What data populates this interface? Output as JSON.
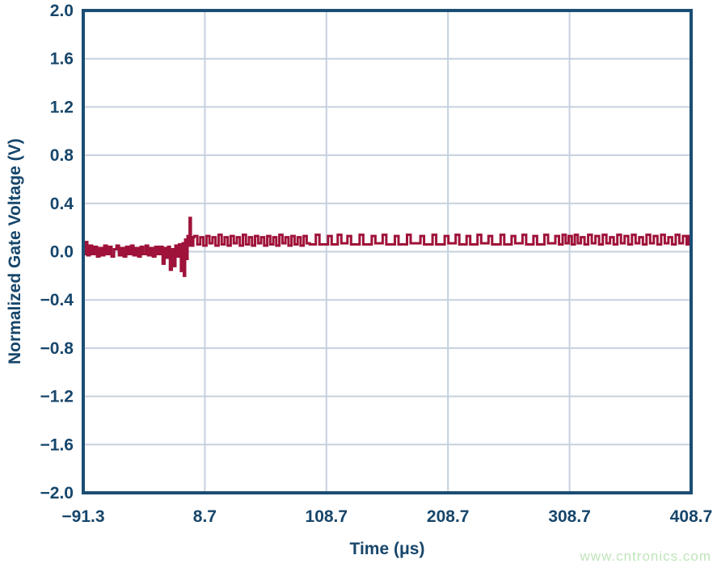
{
  "watermark": {
    "text": "www.cntronics.com",
    "color": "#bfe5ba"
  },
  "chart_data": {
    "type": "line",
    "title": "",
    "xlabel": "Time (μs)",
    "ylabel": "Normalized Gate Voltage (V)",
    "xlim": [
      -91.3,
      408.7
    ],
    "ylim": [
      -2.0,
      2.0
    ],
    "x_ticks": [
      -91.3,
      8.7,
      108.7,
      208.7,
      308.7,
      408.7
    ],
    "x_tick_labels": [
      "−91.3",
      "8.7",
      "108.7",
      "208.7",
      "308.7",
      "408.7"
    ],
    "y_ticks": [
      2.0,
      1.6,
      1.2,
      0.8,
      0.4,
      0.0,
      -0.4,
      -0.8,
      -1.2,
      -1.6,
      -2.0
    ],
    "y_tick_labels": [
      "2.0",
      "1.6",
      "1.2",
      "0.8",
      "0.4",
      "0.0",
      "−0.4",
      "−0.8",
      "−1.2",
      "−1.6",
      "−2.0"
    ],
    "grid": true,
    "legend": "none",
    "colors": {
      "trace": "#9f1239",
      "axis": "#1b4e74",
      "grid": "#c5d1de",
      "tick_text": "#17466b",
      "background": "#ffffff"
    },
    "series": [
      {
        "name": "normalized gate voltage",
        "step": true,
        "points": [
          [
            -91.3,
            -0.02
          ],
          [
            -90,
            0.04
          ],
          [
            -89,
            0.08
          ],
          [
            -88,
            -0.03
          ],
          [
            -86,
            0.05
          ],
          [
            -84,
            -0.02
          ],
          [
            -82,
            0.04
          ],
          [
            -80,
            -0.04
          ],
          [
            -78,
            0.03
          ],
          [
            -76,
            -0.03
          ],
          [
            -74,
            0.05
          ],
          [
            -72,
            -0.02
          ],
          [
            -70,
            0.04
          ],
          [
            -68,
            -0.04
          ],
          [
            -66,
            0.02
          ],
          [
            -64,
            0.05
          ],
          [
            -62,
            -0.03
          ],
          [
            -60,
            0.03
          ],
          [
            -58,
            -0.04
          ],
          [
            -56,
            0.04
          ],
          [
            -54,
            -0.02
          ],
          [
            -52,
            0.05
          ],
          [
            -50,
            -0.03
          ],
          [
            -48,
            0.03
          ],
          [
            -46,
            -0.04
          ],
          [
            -44,
            0.04
          ],
          [
            -42,
            -0.02
          ],
          [
            -40,
            0.05
          ],
          [
            -38,
            -0.03
          ],
          [
            -36,
            0.03
          ],
          [
            -34,
            -0.04
          ],
          [
            -32,
            0.04
          ],
          [
            -30,
            -0.02
          ],
          [
            -28,
            0.04
          ],
          [
            -26,
            -0.1
          ],
          [
            -24.5,
            0.03
          ],
          [
            -23,
            -0.05
          ],
          [
            -21.5,
            0.04
          ],
          [
            -20,
            -0.15
          ],
          [
            -18.5,
            0.02
          ],
          [
            -17,
            -0.12
          ],
          [
            -15.5,
            0.05
          ],
          [
            -14,
            -0.04
          ],
          [
            -12.5,
            0.06
          ],
          [
            -11,
            -0.16
          ],
          [
            -9.5,
            0.07
          ],
          [
            -8.5,
            -0.2
          ],
          [
            -7.5,
            0.1
          ],
          [
            -6.5,
            -0.06
          ],
          [
            -5.5,
            0.13
          ],
          [
            -4.5,
            0.05
          ],
          [
            -3.8,
            0.28
          ],
          [
            -2.8,
            0.12
          ],
          [
            -1.8,
            0.05
          ],
          [
            -0.8,
            0.12
          ],
          [
            0,
            0.13
          ],
          [
            2.5,
            0.06
          ],
          [
            5,
            0.12
          ],
          [
            7.5,
            0.05
          ],
          [
            10,
            0.13
          ],
          [
            12.5,
            0.07
          ],
          [
            15,
            0.12
          ],
          [
            17.5,
            0.05
          ],
          [
            20,
            0.14
          ],
          [
            22.5,
            0.06
          ],
          [
            25,
            0.12
          ],
          [
            27.5,
            0.05
          ],
          [
            30,
            0.13
          ],
          [
            32.5,
            0.07
          ],
          [
            35,
            0.12
          ],
          [
            37.5,
            0.05
          ],
          [
            40,
            0.14
          ],
          [
            42.5,
            0.06
          ],
          [
            45,
            0.12
          ],
          [
            47.5,
            0.05
          ],
          [
            50,
            0.13
          ],
          [
            52.5,
            0.07
          ],
          [
            55,
            0.12
          ],
          [
            57.5,
            0.05
          ],
          [
            60,
            0.13
          ],
          [
            62.5,
            0.06
          ],
          [
            65,
            0.12
          ],
          [
            67.5,
            0.05
          ],
          [
            70,
            0.14
          ],
          [
            72.5,
            0.07
          ],
          [
            75,
            0.12
          ],
          [
            77.5,
            0.05
          ],
          [
            80,
            0.13
          ],
          [
            82.5,
            0.06
          ],
          [
            85,
            0.12
          ],
          [
            87.5,
            0.05
          ],
          [
            90,
            0.13
          ],
          [
            92.5,
            0.07
          ],
          [
            95,
            0.06
          ],
          [
            100,
            0.14
          ],
          [
            103,
            0.06
          ],
          [
            110,
            0.13
          ],
          [
            113,
            0.06
          ],
          [
            118,
            0.14
          ],
          [
            121,
            0.07
          ],
          [
            126,
            0.13
          ],
          [
            129,
            0.06
          ],
          [
            136,
            0.14
          ],
          [
            139,
            0.06
          ],
          [
            146,
            0.13
          ],
          [
            149,
            0.07
          ],
          [
            155,
            0.14
          ],
          [
            158,
            0.06
          ],
          [
            165,
            0.13
          ],
          [
            168,
            0.06
          ],
          [
            175,
            0.14
          ],
          [
            178,
            0.07
          ],
          [
            186,
            0.13
          ],
          [
            189,
            0.06
          ],
          [
            196,
            0.14
          ],
          [
            199,
            0.06
          ],
          [
            206,
            0.13
          ],
          [
            209,
            0.07
          ],
          [
            215,
            0.14
          ],
          [
            218,
            0.06
          ],
          [
            224,
            0.13
          ],
          [
            227,
            0.06
          ],
          [
            233,
            0.14
          ],
          [
            236,
            0.07
          ],
          [
            242,
            0.13
          ],
          [
            245,
            0.06
          ],
          [
            252,
            0.14
          ],
          [
            255,
            0.06
          ],
          [
            261,
            0.13
          ],
          [
            264,
            0.07
          ],
          [
            270,
            0.14
          ],
          [
            273,
            0.06
          ],
          [
            279,
            0.13
          ],
          [
            282,
            0.06
          ],
          [
            288,
            0.14
          ],
          [
            291,
            0.07
          ],
          [
            297,
            0.13
          ],
          [
            300,
            0.06
          ],
          [
            303,
            0.14
          ],
          [
            305.5,
            0.07
          ],
          [
            308,
            0.13
          ],
          [
            310.5,
            0.06
          ],
          [
            313,
            0.14
          ],
          [
            315.5,
            0.07
          ],
          [
            318,
            0.12
          ],
          [
            321,
            0.06
          ],
          [
            324,
            0.14
          ],
          [
            327,
            0.07
          ],
          [
            330,
            0.13
          ],
          [
            333,
            0.06
          ],
          [
            336,
            0.14
          ],
          [
            339,
            0.07
          ],
          [
            342,
            0.12
          ],
          [
            345,
            0.06
          ],
          [
            348,
            0.14
          ],
          [
            351,
            0.07
          ],
          [
            354,
            0.13
          ],
          [
            357,
            0.06
          ],
          [
            360,
            0.14
          ],
          [
            363,
            0.07
          ],
          [
            366,
            0.12
          ],
          [
            369,
            0.06
          ],
          [
            372,
            0.14
          ],
          [
            375,
            0.07
          ],
          [
            378,
            0.13
          ],
          [
            381,
            0.06
          ],
          [
            384,
            0.14
          ],
          [
            387,
            0.07
          ],
          [
            390,
            0.12
          ],
          [
            393,
            0.06
          ],
          [
            396,
            0.14
          ],
          [
            399,
            0.07
          ],
          [
            402,
            0.13
          ],
          [
            405,
            0.06
          ],
          [
            407,
            0.13
          ],
          [
            408.7,
            0.1
          ]
        ]
      }
    ]
  }
}
